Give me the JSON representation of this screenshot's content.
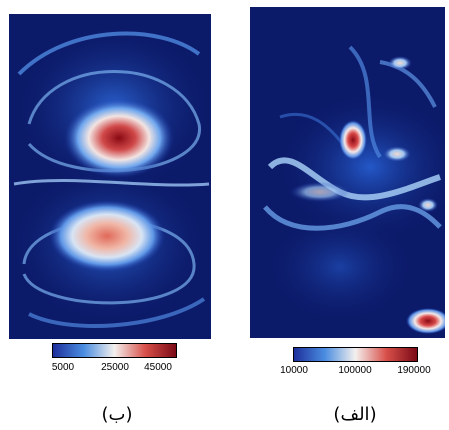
{
  "panels": [
    {
      "id": "b",
      "caption": "(ب)",
      "colorbar": {
        "ticks": [
          "5000",
          "25000",
          "45000"
        ],
        "colors": [
          "#1e2f9c",
          "#4a8de0",
          "#f4f0ee",
          "#d8504a",
          "#7a0a16"
        ]
      }
    },
    {
      "id": "alef",
      "caption": "(الف)",
      "colorbar": {
        "ticks": [
          "10000",
          "100000",
          "190000"
        ],
        "colors": [
          "#1e2f9c",
          "#4a8de0",
          "#f4f0ee",
          "#d8504a",
          "#7a0a16"
        ]
      }
    }
  ]
}
